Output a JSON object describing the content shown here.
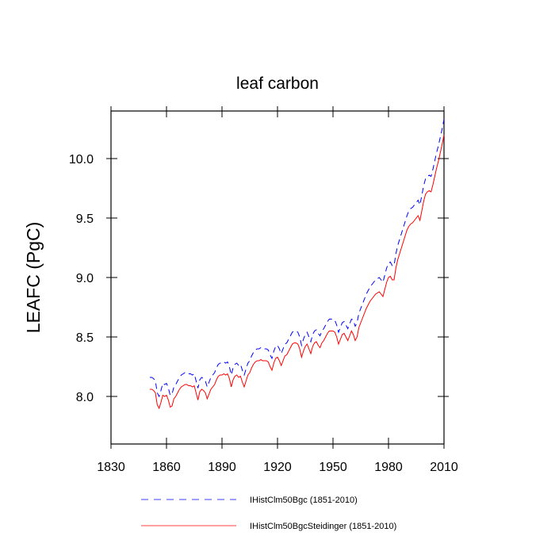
{
  "chart_data": {
    "type": "line",
    "title": "leaf carbon",
    "ylabel": "LEAFC  (PgC)",
    "x": [
      1851,
      1852,
      1853,
      1854,
      1855,
      1856,
      1857,
      1858,
      1859,
      1860,
      1861,
      1862,
      1863,
      1864,
      1865,
      1866,
      1867,
      1868,
      1869,
      1870,
      1871,
      1872,
      1873,
      1874,
      1875,
      1876,
      1877,
      1878,
      1879,
      1880,
      1881,
      1882,
      1883,
      1884,
      1885,
      1886,
      1887,
      1888,
      1889,
      1890,
      1891,
      1892,
      1893,
      1894,
      1895,
      1896,
      1897,
      1898,
      1899,
      1900,
      1901,
      1902,
      1903,
      1904,
      1905,
      1906,
      1907,
      1908,
      1909,
      1910,
      1911,
      1912,
      1913,
      1914,
      1915,
      1916,
      1917,
      1918,
      1919,
      1920,
      1921,
      1922,
      1923,
      1924,
      1925,
      1926,
      1927,
      1928,
      1929,
      1930,
      1931,
      1932,
      1933,
      1934,
      1935,
      1936,
      1937,
      1938,
      1939,
      1940,
      1941,
      1942,
      1943,
      1944,
      1945,
      1946,
      1947,
      1948,
      1949,
      1950,
      1951,
      1952,
      1953,
      1954,
      1955,
      1956,
      1957,
      1958,
      1959,
      1960,
      1961,
      1962,
      1963,
      1964,
      1965,
      1966,
      1967,
      1968,
      1969,
      1970,
      1971,
      1972,
      1973,
      1974,
      1975,
      1976,
      1977,
      1978,
      1979,
      1980,
      1981,
      1982,
      1983,
      1984,
      1985,
      1986,
      1987,
      1988,
      1989,
      1990,
      1991,
      1992,
      1993,
      1994,
      1995,
      1996,
      1997,
      1998,
      1999,
      2000,
      2001,
      2002,
      2003,
      2004,
      2005,
      2006,
      2007,
      2008,
      2009,
      2010
    ],
    "series": [
      {
        "name": "IHistClm50Bgc (1851-2010)",
        "color": "#0000ff",
        "dash": true,
        "values": [
          8.16,
          8.16,
          8.15,
          8.13,
          8.03,
          8.0,
          8.05,
          8.11,
          8.1,
          8.11,
          8.07,
          8.01,
          8.02,
          8.08,
          8.1,
          8.13,
          8.16,
          8.18,
          8.19,
          8.2,
          8.2,
          8.19,
          8.19,
          8.18,
          8.19,
          8.13,
          8.07,
          8.14,
          8.16,
          8.15,
          8.13,
          8.08,
          8.12,
          8.16,
          8.18,
          8.2,
          8.24,
          8.27,
          8.28,
          8.28,
          8.29,
          8.28,
          8.29,
          8.25,
          8.18,
          8.24,
          8.27,
          8.28,
          8.26,
          8.27,
          8.22,
          8.18,
          8.23,
          8.28,
          8.3,
          8.34,
          8.37,
          8.39,
          8.4,
          8.4,
          8.41,
          8.4,
          8.4,
          8.4,
          8.39,
          8.35,
          8.32,
          8.38,
          8.42,
          8.43,
          8.4,
          8.36,
          8.4,
          8.44,
          8.45,
          8.48,
          8.51,
          8.54,
          8.55,
          8.55,
          8.54,
          8.5,
          8.43,
          8.48,
          8.52,
          8.54,
          8.5,
          8.46,
          8.52,
          8.55,
          8.56,
          8.53,
          8.51,
          8.55,
          8.57,
          8.6,
          8.63,
          8.65,
          8.65,
          8.65,
          8.64,
          8.6,
          8.54,
          8.58,
          8.62,
          8.63,
          8.6,
          8.57,
          8.61,
          8.65,
          8.64,
          8.59,
          8.62,
          8.7,
          8.74,
          8.78,
          8.82,
          8.86,
          8.89,
          8.92,
          8.94,
          8.96,
          8.98,
          8.99,
          9.0,
          8.98,
          8.96,
          9.02,
          9.08,
          9.12,
          9.13,
          9.1,
          9.1,
          9.2,
          9.27,
          9.32,
          9.37,
          9.42,
          9.47,
          9.52,
          9.56,
          9.58,
          9.59,
          9.61,
          9.63,
          9.65,
          9.61,
          9.69,
          9.77,
          9.83,
          9.85,
          9.86,
          9.85,
          9.91,
          9.98,
          10.05,
          10.11,
          10.18,
          10.25,
          10.33
        ]
      },
      {
        "name": "IHistClm50BgcSteidinger (1851-2010)",
        "color": "#ff0000",
        "dash": false,
        "values": [
          8.06,
          8.06,
          8.05,
          8.03,
          7.93,
          7.9,
          7.95,
          8.01,
          8.0,
          8.01,
          7.97,
          7.91,
          7.92,
          7.98,
          8.0,
          8.03,
          8.06,
          8.08,
          8.09,
          8.1,
          8.1,
          8.09,
          8.09,
          8.08,
          8.09,
          8.03,
          7.97,
          8.04,
          8.06,
          8.05,
          8.03,
          7.98,
          8.02,
          8.06,
          8.08,
          8.1,
          8.14,
          8.17,
          8.18,
          8.18,
          8.19,
          8.18,
          8.19,
          8.15,
          8.08,
          8.14,
          8.17,
          8.18,
          8.16,
          8.17,
          8.12,
          8.08,
          8.13,
          8.18,
          8.2,
          8.24,
          8.27,
          8.29,
          8.3,
          8.3,
          8.31,
          8.3,
          8.3,
          8.3,
          8.29,
          8.25,
          8.22,
          8.28,
          8.32,
          8.33,
          8.3,
          8.26,
          8.3,
          8.34,
          8.35,
          8.38,
          8.41,
          8.44,
          8.45,
          8.45,
          8.44,
          8.4,
          8.33,
          8.38,
          8.42,
          8.44,
          8.4,
          8.36,
          8.42,
          8.45,
          8.46,
          8.43,
          8.41,
          8.45,
          8.47,
          8.5,
          8.53,
          8.55,
          8.55,
          8.55,
          8.54,
          8.5,
          8.44,
          8.48,
          8.52,
          8.53,
          8.5,
          8.47,
          8.51,
          8.55,
          8.52,
          8.47,
          8.5,
          8.58,
          8.62,
          8.66,
          8.7,
          8.74,
          8.77,
          8.8,
          8.82,
          8.84,
          8.86,
          8.87,
          8.88,
          8.86,
          8.84,
          8.9,
          8.96,
          9.0,
          9.01,
          8.98,
          8.98,
          9.08,
          9.15,
          9.2,
          9.25,
          9.3,
          9.35,
          9.4,
          9.43,
          9.45,
          9.46,
          9.48,
          9.5,
          9.52,
          9.48,
          9.56,
          9.64,
          9.7,
          9.72,
          9.73,
          9.72,
          9.78,
          9.85,
          9.92,
          9.98,
          10.05,
          10.12,
          10.2
        ]
      }
    ],
    "xlim": [
      1830,
      2010
    ],
    "xticks": [
      1830,
      1860,
      1890,
      1920,
      1950,
      1980,
      2010
    ],
    "ylim": [
      7.6,
      10.4
    ],
    "yticks": [
      {
        "value": 8,
        "label": "8.0"
      },
      8.5,
      {
        "value": 9,
        "label": "9.0"
      },
      9.5,
      {
        "value": 10,
        "label": "10.0"
      }
    ],
    "grid": false,
    "legend": "bottom"
  }
}
